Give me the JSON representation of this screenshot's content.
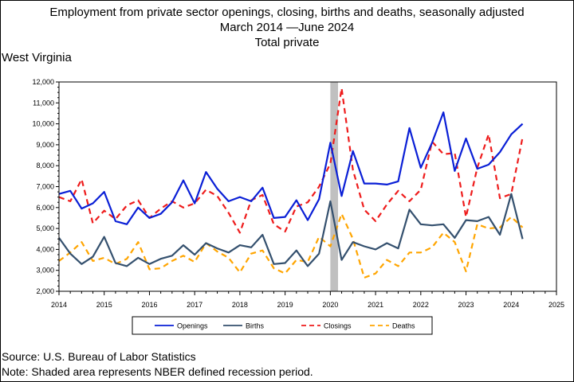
{
  "title_lines": [
    "Employment from private sector openings, closing, births and deaths, seasonally adjusted",
    "March 2014 —June 2024",
    "Total private"
  ],
  "state_label": "West Virginia",
  "footnotes": {
    "source": "Source: U.S. Bureau of Labor Statistics",
    "note": "Note: Shaded area represents NBER defined recession period."
  },
  "colors": {
    "openings": "#0a1fd6",
    "births": "#34506e",
    "closings": "#ee1c1c",
    "deaths": "#ffa500",
    "recession": "#c0c0c0"
  },
  "chart_data": {
    "type": "line",
    "title": "Employment from private sector openings, closing, births and deaths, seasonally adjusted",
    "xlim": [
      2014,
      2025
    ],
    "ylim": [
      2000,
      12000
    ],
    "x_ticks": [
      2014,
      2015,
      2016,
      2017,
      2018,
      2019,
      2020,
      2021,
      2022,
      2023,
      2024,
      2025
    ],
    "y_ticks": [
      2000,
      3000,
      4000,
      5000,
      6000,
      7000,
      8000,
      9000,
      10000,
      11000,
      12000
    ],
    "x_tick_labels": [
      "2014",
      "2015",
      "2016",
      "2017",
      "2018",
      "2019",
      "2020",
      "2021",
      "2022",
      "2023",
      "2024",
      "2025"
    ],
    "y_tick_labels": [
      "2,000",
      "3,000",
      "4,000",
      "5,000",
      "6,000",
      "7,000",
      "8,000",
      "9,000",
      "10,000",
      "11,000",
      "12,000"
    ],
    "recession": [
      2020.0,
      2020.17
    ],
    "legend_position": "bottom",
    "x": [
      2014.0,
      2014.25,
      2014.5,
      2014.75,
      2015.0,
      2015.25,
      2015.5,
      2015.75,
      2016.0,
      2016.25,
      2016.5,
      2016.75,
      2017.0,
      2017.25,
      2017.5,
      2017.75,
      2018.0,
      2018.25,
      2018.5,
      2018.75,
      2019.0,
      2019.25,
      2019.5,
      2019.75,
      2020.0,
      2020.25,
      2020.5,
      2020.75,
      2021.0,
      2021.25,
      2021.5,
      2021.75,
      2022.0,
      2022.25,
      2022.5,
      2022.75,
      2023.0,
      2023.25,
      2023.5,
      2023.75,
      2024.0,
      2024.25
    ],
    "series": [
      {
        "name": "Openings",
        "style": "solid",
        "values": [
          6650,
          6800,
          5950,
          6200,
          6750,
          5350,
          5200,
          6000,
          5500,
          5700,
          6250,
          7300,
          6200,
          7700,
          6900,
          6300,
          6500,
          6300,
          6950,
          5500,
          5550,
          6350,
          5400,
          6400,
          9100,
          6550,
          8700,
          7150,
          7150,
          7100,
          7250,
          9800,
          7900,
          9100,
          10550,
          7750,
          9300,
          7850,
          8050,
          8650,
          9500,
          10000
        ]
      },
      {
        "name": "Births",
        "style": "solid",
        "values": [
          4550,
          3800,
          3300,
          3650,
          4600,
          3350,
          3200,
          3600,
          3300,
          3550,
          3700,
          4200,
          3750,
          4300,
          4050,
          3850,
          4200,
          4100,
          4700,
          3300,
          3350,
          3950,
          3200,
          3800,
          6300,
          3500,
          4350,
          4150,
          4000,
          4300,
          4050,
          5900,
          5200,
          5150,
          5200,
          4550,
          5400,
          5350,
          5550,
          4700,
          6650,
          4500
        ]
      },
      {
        "name": "Closings",
        "style": "dashed",
        "values": [
          6500,
          6300,
          7350,
          5250,
          5850,
          5450,
          6100,
          6350,
          5500,
          5950,
          6300,
          6000,
          6200,
          6850,
          6550,
          5750,
          4800,
          6350,
          6600,
          5200,
          4850,
          6050,
          6250,
          7000,
          8100,
          11700,
          7800,
          5900,
          5350,
          6150,
          6800,
          6300,
          6850,
          9150,
          8550,
          8600,
          5550,
          7900,
          9500,
          6450,
          6650,
          9350
        ]
      },
      {
        "name": "Deaths",
        "style": "dashed",
        "values": [
          3450,
          3850,
          4350,
          3450,
          3600,
          3300,
          3550,
          4350,
          3050,
          3100,
          3450,
          3700,
          3400,
          4300,
          3900,
          3600,
          2900,
          3800,
          3950,
          3100,
          2850,
          3500,
          3400,
          4600,
          4150,
          5700,
          4500,
          2650,
          2850,
          3500,
          3200,
          3850,
          3850,
          4100,
          4800,
          4350,
          2950,
          5200,
          5000,
          5050,
          5550,
          5050
        ]
      }
    ]
  }
}
